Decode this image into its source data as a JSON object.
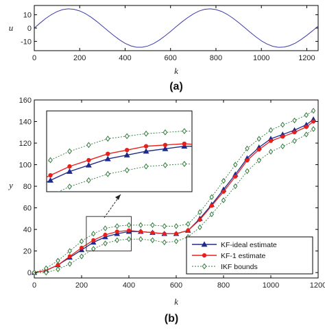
{
  "chart_data": [
    {
      "type": "line",
      "panel_label": "(a)",
      "xlabel": "k",
      "ylabel": "u",
      "xlim": [
        0,
        1250
      ],
      "ylim": [
        -17,
        17
      ],
      "xticks": [
        0,
        200,
        400,
        600,
        800,
        1000,
        1200
      ],
      "yticks": [
        -10,
        0,
        10
      ],
      "grid": false,
      "series": [
        {
          "color": "#3a3aa8",
          "x": [
            0,
            25,
            50,
            75,
            100,
            125,
            150,
            175,
            200,
            225,
            250,
            275,
            300,
            325,
            350,
            375,
            400,
            425,
            450,
            475,
            500,
            525,
            550,
            575,
            600,
            625,
            650,
            675,
            700,
            725,
            750,
            775,
            800,
            825,
            850,
            875,
            900,
            925,
            950,
            975,
            1000,
            1025,
            1050,
            1075,
            1100,
            1125,
            1150,
            1175,
            1200,
            1225,
            1250
          ],
          "y": [
            0.0,
            3.7,
            7.2,
            10.1,
            12.4,
            13.9,
            14.5,
            14.1,
            12.9,
            10.9,
            8.2,
            5.0,
            1.5,
            -2.1,
            -5.6,
            -8.8,
            -11.5,
            -13.4,
            -14.4,
            -14.4,
            -13.5,
            -11.7,
            -9.1,
            -6.0,
            -2.6,
            1.1,
            4.6,
            7.8,
            10.6,
            12.8,
            14.1,
            14.5,
            13.9,
            12.5,
            10.3,
            7.4,
            4.1,
            0.6,
            -3.0,
            -6.5,
            -9.6,
            -12.0,
            -13.7,
            -14.5,
            -14.3,
            -13.2,
            -11.3,
            -8.6,
            -5.5,
            -2.1,
            1.5
          ]
        }
      ]
    },
    {
      "type": "line",
      "panel_label": "(b)",
      "xlabel": "k",
      "ylabel": "y",
      "xlim": [
        0,
        1200
      ],
      "ylim": [
        -5,
        160
      ],
      "xticks": [
        0,
        200,
        400,
        600,
        800,
        1000,
        1200
      ],
      "yticks": [
        0,
        20,
        40,
        60,
        80,
        100,
        120,
        140,
        160
      ],
      "grid": false,
      "legend_position": "bottom-right",
      "series": [
        {
          "name": "KF-ideal estimate",
          "color": "#1e2a8c",
          "marker": "triangle",
          "x": [
            0,
            50,
            100,
            150,
            200,
            250,
            300,
            350,
            400,
            450,
            500,
            550,
            600,
            650,
            700,
            750,
            800,
            850,
            900,
            950,
            1000,
            1050,
            1100,
            1150,
            1180
          ],
          "y": [
            0,
            2,
            7,
            14,
            21,
            28,
            33,
            36,
            38,
            38,
            37,
            36,
            36,
            39,
            50,
            63,
            77,
            91,
            106,
            116,
            124,
            128,
            132,
            137,
            142
          ]
        },
        {
          "name": "KF-1 estimate",
          "color": "#e8201c",
          "marker": "circle",
          "x": [
            0,
            50,
            100,
            150,
            200,
            250,
            300,
            350,
            400,
            450,
            500,
            550,
            600,
            650,
            700,
            750,
            800,
            850,
            900,
            950,
            1000,
            1050,
            1100,
            1150,
            1180
          ],
          "y": [
            0,
            2,
            7,
            15,
            23,
            30,
            35,
            38,
            39,
            38,
            37,
            36,
            36,
            39,
            49,
            62,
            75,
            89,
            104,
            114,
            122,
            126,
            130,
            135,
            140
          ]
        },
        {
          "name": "IKF bounds",
          "color": "#2f7a3a",
          "marker": "diamond",
          "x": [
            0,
            50,
            100,
            150,
            200,
            250,
            300,
            350,
            400,
            450,
            500,
            550,
            600,
            650,
            700,
            750,
            800,
            850,
            900,
            950,
            1000,
            1050,
            1100,
            1150,
            1180
          ],
          "y": [
            0,
            4,
            11,
            20,
            29,
            36,
            41,
            43,
            44,
            44,
            44,
            43,
            43,
            45,
            56,
            70,
            85,
            100,
            115,
            124,
            132,
            137,
            141,
            146,
            150
          ]
        },
        {
          "color": "#2f7a3a",
          "marker": "diamond",
          "x": [
            0,
            50,
            100,
            150,
            200,
            250,
            300,
            350,
            400,
            450,
            500,
            550,
            600,
            650,
            700,
            750,
            800,
            850,
            900,
            950,
            1000,
            1050,
            1100,
            1150,
            1180
          ],
          "y": [
            0,
            0,
            3,
            8,
            15,
            22,
            27,
            30,
            31,
            31,
            30,
            28,
            29,
            33,
            42,
            54,
            67,
            80,
            94,
            104,
            112,
            117,
            122,
            128,
            133
          ]
        }
      ],
      "zoom_region": {
        "x": [
          220,
          410
        ],
        "y": [
          20,
          52
        ]
      },
      "legend": [
        "KF-ideal estimate",
        "KF-1 estimate",
        "IKF bounds"
      ]
    }
  ]
}
